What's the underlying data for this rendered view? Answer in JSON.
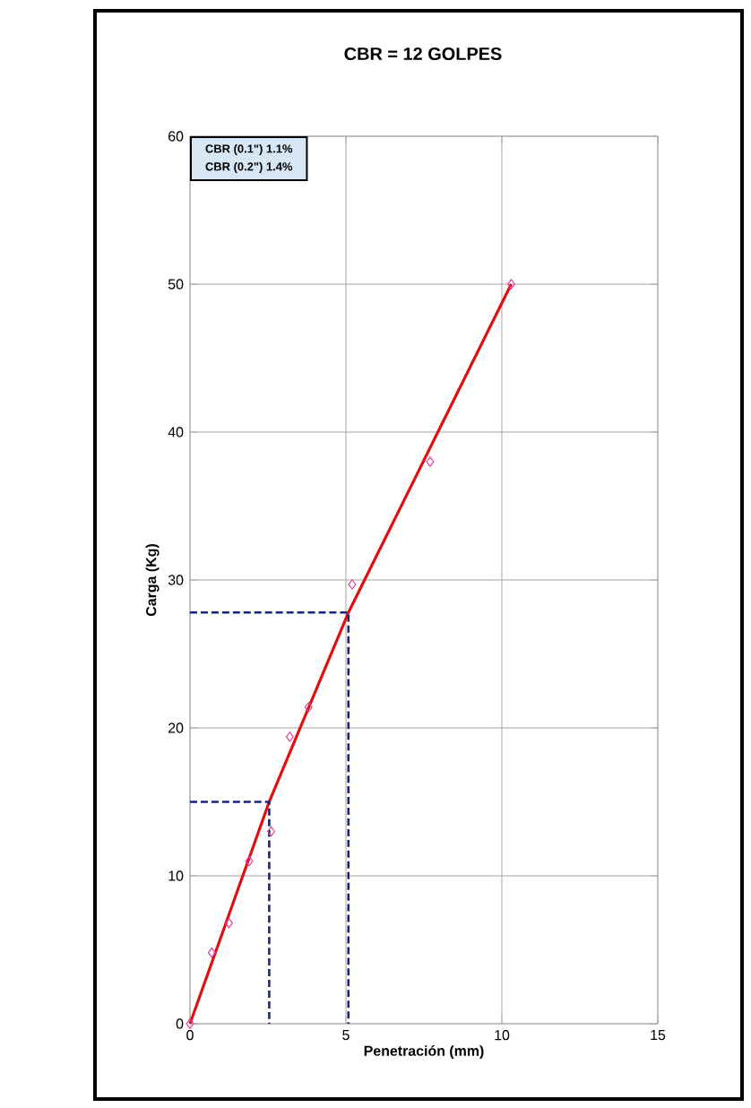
{
  "chart_data": {
    "type": "scatter",
    "title": "CBR = 12 GOLPES",
    "xlabel": "Penetración (mm)",
    "ylabel": "Carga (Kg)",
    "annotations": [
      "CBR (0.1\")  1.1%",
      "CBR (0.2\")  1.4%"
    ],
    "xlim": [
      0,
      15
    ],
    "ylim": [
      0,
      60
    ],
    "xticks": [
      0,
      5,
      10,
      15
    ],
    "yticks": [
      0,
      10,
      20,
      30,
      40,
      50,
      60
    ],
    "grid": true,
    "series": [
      {
        "type": "line",
        "color": "#e01010",
        "line_style": "solid",
        "marker": "none",
        "x": [
          0,
          2.54,
          5.08,
          10.3
        ],
        "values": [
          0,
          15,
          27.8,
          50
        ]
      },
      {
        "color": "#e040a0",
        "marker": "diamond",
        "x": [
          0,
          0.7,
          1.25,
          1.9,
          2.6,
          3.2,
          3.8,
          5.2,
          7.7,
          10.3
        ],
        "values": [
          0,
          4.8,
          6.8,
          11,
          13,
          19.4,
          21.4,
          29.7,
          38,
          50
        ]
      },
      {
        "type": "line",
        "color": "#1a237e",
        "line_style": "dashed",
        "marker": "none",
        "x": [
          0,
          2.54,
          2.54
        ],
        "values": [
          15,
          15,
          0
        ]
      },
      {
        "type": "line",
        "color": "#1a237e",
        "line_style": "dashed",
        "marker": "none",
        "x": [
          0,
          5.08,
          5.08
        ],
        "values": [
          27.8,
          27.8,
          0
        ]
      }
    ]
  }
}
